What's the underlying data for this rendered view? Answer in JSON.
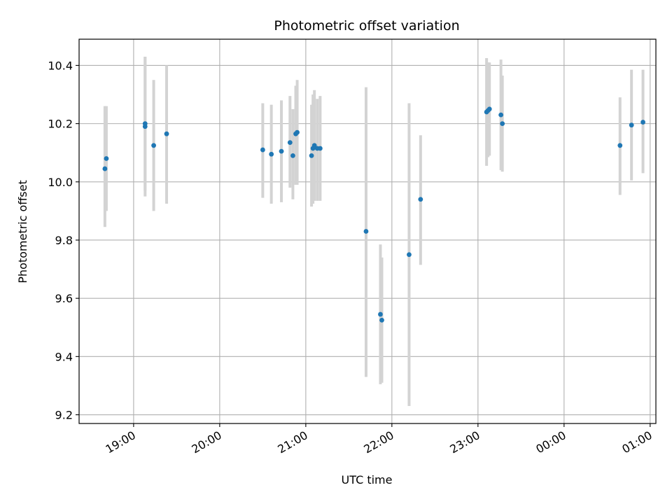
{
  "chart_data": {
    "type": "scatter",
    "title": "Photometric offset variation",
    "xlabel": "UTC time",
    "ylabel": "Photometric offset",
    "x_ticks": [
      "19:00",
      "20:00",
      "21:00",
      "22:00",
      "23:00",
      "00:00",
      "01:00"
    ],
    "y_ticks": [
      "9.2",
      "9.4",
      "9.6",
      "9.8",
      "10.0",
      "10.2",
      "10.4"
    ],
    "y_tick_values": [
      9.2,
      9.4,
      9.6,
      9.8,
      10.0,
      10.2,
      10.4
    ],
    "xlim": [
      "18:22",
      "25:04"
    ],
    "ylim": [
      9.17,
      10.49
    ],
    "grid": true,
    "point_color": "#1f77b4",
    "errorbar_color": "#d3d3d3",
    "points": [
      {
        "t": "18:40",
        "y": 10.045,
        "lo": 9.845,
        "hi": 10.26
      },
      {
        "t": "18:41",
        "y": 10.08,
        "lo": 9.9,
        "hi": 10.26
      },
      {
        "t": "19:08",
        "y": 10.19,
        "lo": 9.95,
        "hi": 10.43
      },
      {
        "t": "19:08",
        "y": 10.2,
        "lo": 9.97,
        "hi": 10.43
      },
      {
        "t": "19:14",
        "y": 10.125,
        "lo": 9.9,
        "hi": 10.35
      },
      {
        "t": "19:23",
        "y": 10.165,
        "lo": 9.925,
        "hi": 10.4
      },
      {
        "t": "20:30",
        "y": 10.11,
        "lo": 9.945,
        "hi": 10.27
      },
      {
        "t": "20:36",
        "y": 10.095,
        "lo": 9.925,
        "hi": 10.265
      },
      {
        "t": "20:43",
        "y": 10.105,
        "lo": 9.93,
        "hi": 10.28
      },
      {
        "t": "20:49",
        "y": 10.135,
        "lo": 9.98,
        "hi": 10.295
      },
      {
        "t": "20:51",
        "y": 10.09,
        "lo": 9.94,
        "hi": 10.25
      },
      {
        "t": "20:53",
        "y": 10.165,
        "lo": 9.99,
        "hi": 10.33
      },
      {
        "t": "20:54",
        "y": 10.17,
        "lo": 9.99,
        "hi": 10.35
      },
      {
        "t": "21:04",
        "y": 10.09,
        "lo": 9.915,
        "hi": 10.265
      },
      {
        "t": "21:05",
        "y": 10.115,
        "lo": 9.925,
        "hi": 10.3
      },
      {
        "t": "21:06",
        "y": 10.125,
        "lo": 9.935,
        "hi": 10.315
      },
      {
        "t": "21:08",
        "y": 10.115,
        "lo": 9.935,
        "hi": 10.285
      },
      {
        "t": "21:10",
        "y": 10.115,
        "lo": 9.935,
        "hi": 10.295
      },
      {
        "t": "21:42",
        "y": 9.83,
        "lo": 9.33,
        "hi": 10.325
      },
      {
        "t": "21:52",
        "y": 9.545,
        "lo": 9.305,
        "hi": 9.785
      },
      {
        "t": "21:53",
        "y": 9.525,
        "lo": 9.31,
        "hi": 9.74
      },
      {
        "t": "22:12",
        "y": 9.75,
        "lo": 9.23,
        "hi": 10.27
      },
      {
        "t": "22:20",
        "y": 9.94,
        "lo": 9.715,
        "hi": 10.16
      },
      {
        "t": "23:06",
        "y": 10.24,
        "lo": 10.055,
        "hi": 10.425
      },
      {
        "t": "23:07",
        "y": 10.245,
        "lo": 10.085,
        "hi": 10.41
      },
      {
        "t": "23:08",
        "y": 10.25,
        "lo": 10.09,
        "hi": 10.41
      },
      {
        "t": "23:16",
        "y": 10.23,
        "lo": 10.04,
        "hi": 10.42
      },
      {
        "t": "23:17",
        "y": 10.2,
        "lo": 10.035,
        "hi": 10.365
      },
      {
        "t": "24:39",
        "y": 10.125,
        "lo": 9.955,
        "hi": 10.29
      },
      {
        "t": "24:47",
        "y": 10.195,
        "lo": 10.005,
        "hi": 10.385
      },
      {
        "t": "24:55",
        "y": 10.205,
        "lo": 10.03,
        "hi": 10.385
      }
    ]
  }
}
